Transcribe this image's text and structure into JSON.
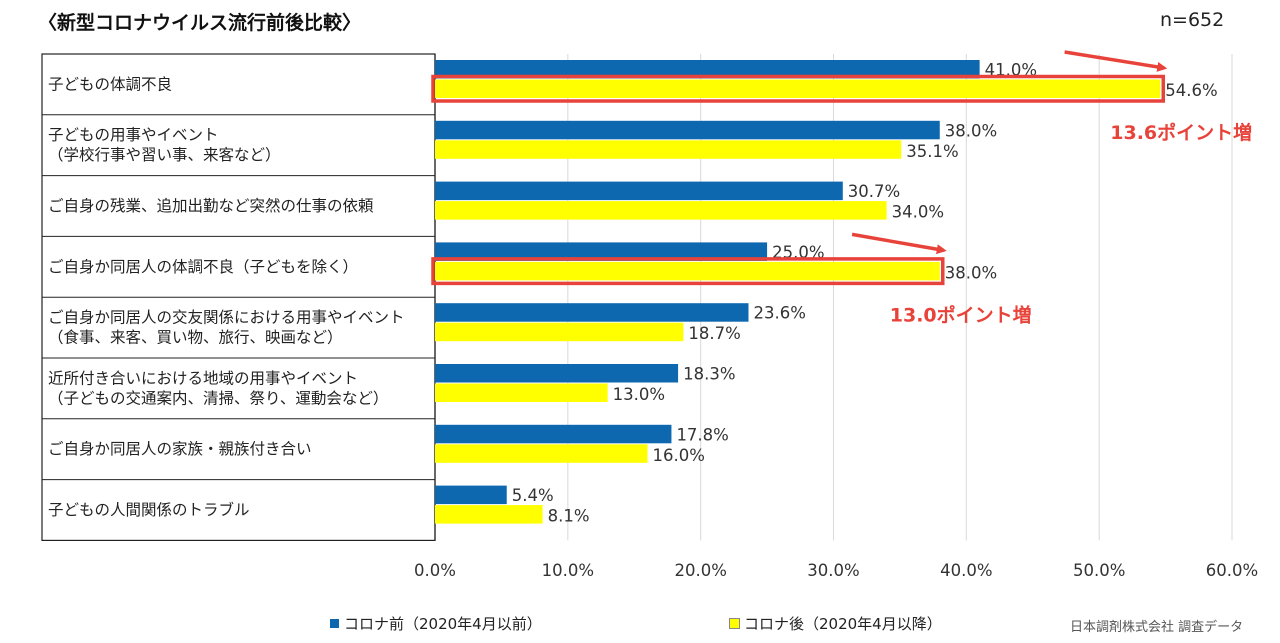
{
  "chart_data": {
    "type": "bar",
    "orientation": "horizontal",
    "title": "〈新型コロナウイルス流行前後比較〉",
    "sample_size": "n=652",
    "categories": [
      [
        "子どもの体調不良"
      ],
      [
        "子どもの用事やイベント",
        "（学校行事や習い事、来客など）"
      ],
      [
        "ご自身の残業、追加出勤など突然の仕事の依頼"
      ],
      [
        "ご自身か同居人の体調不良（子どもを除く）"
      ],
      [
        "ご自身か同居人の交友関係における用事やイベント",
        "（食事、来客、買い物、旅行、映画など）"
      ],
      [
        "近所付き合いにおける地域の用事やイベント",
        "（子どもの交通案内、清掃、祭り、運動会など）"
      ],
      [
        "ご自身か同居人の家族・親族付き合い"
      ],
      [
        "子どもの人間関係のトラブル"
      ]
    ],
    "series": [
      {
        "name": "コロナ前（2020年4月以前）",
        "color": "#0e68b0",
        "values": [
          41.0,
          38.0,
          30.7,
          25.0,
          23.6,
          18.3,
          17.8,
          5.4
        ],
        "labels": [
          "41.0%",
          "38.0%",
          "30.7%",
          "25.0%",
          "23.6%",
          "18.3%",
          "17.8%",
          "5.4%"
        ]
      },
      {
        "name": "コロナ後（2020年4月以降）",
        "color": "#ffff00",
        "values": [
          54.6,
          35.1,
          34.0,
          38.0,
          18.7,
          13.0,
          16.0,
          8.1
        ],
        "labels": [
          "54.6%",
          "35.1%",
          "34.0%",
          "38.0%",
          "18.7%",
          "13.0%",
          "16.0%",
          "8.1%"
        ]
      }
    ],
    "xlim": [
      0,
      60
    ],
    "xticks": [
      0,
      10,
      20,
      30,
      40,
      50,
      60
    ],
    "xtick_labels": [
      "0.0%",
      "10.0%",
      "20.0%",
      "30.0%",
      "40.0%",
      "50.0%",
      "60.0%"
    ],
    "grid": true,
    "annotations": [
      {
        "category_index": 0,
        "text": "13.6ポイント増"
      },
      {
        "category_index": 3,
        "text": "13.0ポイント増"
      }
    ],
    "highlight_color": "#e8433a"
  },
  "legend": [
    {
      "label": "コロナ前（2020年4月以前）"
    },
    {
      "label": "コロナ後（2020年4月以降）"
    }
  ],
  "source": "日本調剤株式会社  調査データ"
}
